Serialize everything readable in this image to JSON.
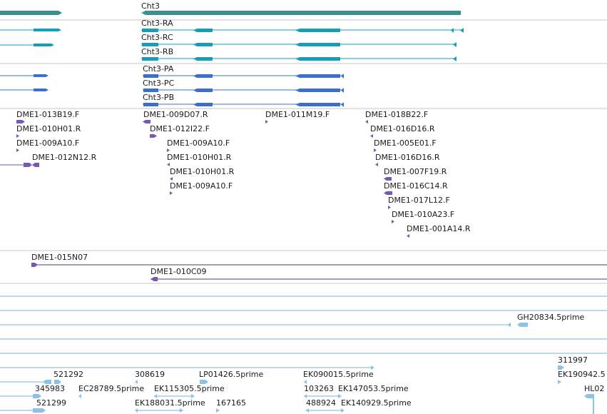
{
  "colors": {
    "gene": "#3a8f8f",
    "transcript": "#129fb7",
    "protein": "#3a6fd0",
    "clone": "#7759b4",
    "clone_pair": "#4a3d7a",
    "est": "#8cc2e3",
    "separator": "#c6c6c6",
    "est_separator": "#7ab6d6",
    "label": "#1a1a1a"
  },
  "gene_track": {
    "gene_label": "Cht3"
  },
  "transcript_track": {
    "transcripts": [
      "Cht3-RA",
      "Cht3-RC",
      "Cht3-RB"
    ]
  },
  "protein_track": {
    "proteins": [
      "Cht3-PA",
      "Cht3-PC",
      "Cht3-PB"
    ]
  },
  "clone_end_track": {
    "labels": [
      "DME1-013B19.F",
      "DME1-010H01.R",
      "DME1-009A10.F",
      "DME1-012N12.R",
      "DME1-009D07.R",
      "DME1-012I22.F",
      "DME1-009A10.F",
      "DME1-010H01.R",
      "DME1-010H01.R",
      "DME1-009A10.F",
      "DME1-011M19.F",
      "DME1-018B22.F",
      "DME1-016D16.R",
      "DME1-005E01.F",
      "DME1-016D16.R",
      "DME1-007F19.R",
      "DME1-016C14.R",
      "DME1-017L12.F",
      "DME1-010A23.F",
      "DME1-001A14.R"
    ]
  },
  "clone_pair_track": {
    "labels": [
      "DME1-015N07",
      "DME1-010C09"
    ]
  },
  "est_track": {
    "labels": [
      "GH20834.5prime",
      "311997",
      "EK190942.5",
      "HL02",
      "521292",
      "308619",
      "LP01426.5prime",
      "EK090015.5prime",
      "345983",
      "EC28789.5prime",
      "EK115305.5prime",
      "103263",
      "EK147053.5prime",
      "521299",
      "EK188031.5prime",
      "167165",
      "488924",
      "EK140929.5prime"
    ]
  }
}
